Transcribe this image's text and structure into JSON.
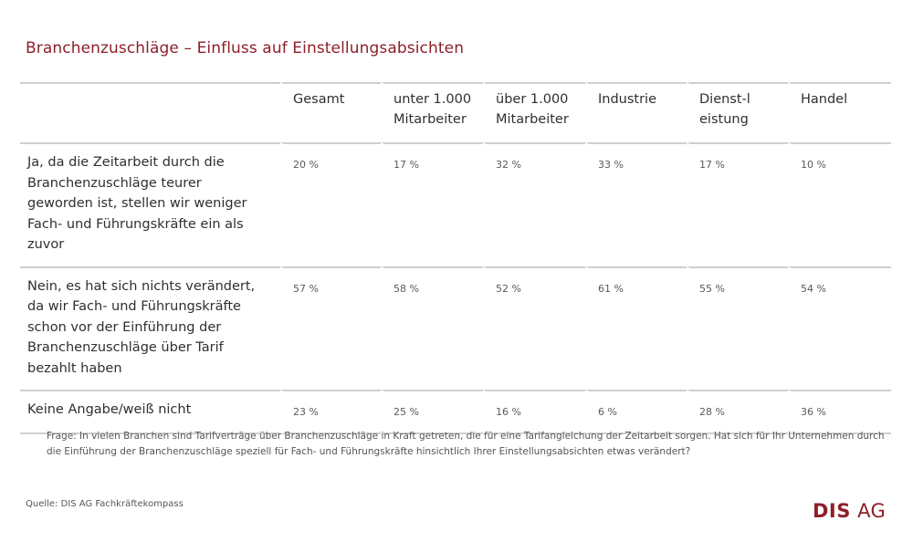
{
  "title": "Branchenzuschläge – Einfluss auf Einstellungsabsichten",
  "chart_data": {
    "type": "table",
    "title": "Branchenzuschläge – Einfluss auf Einstellungsabsichten",
    "columns": [
      "Gesamt",
      "unter 1.000 Mitarbeiter",
      "über 1.000 Mitarbeiter",
      "Industrie",
      "Dienst-leistung",
      "Handel"
    ],
    "rows": [
      {
        "label": "Ja, da die Zeitarbeit durch die Branchenzuschläge teurer geworden ist, stellen wir weniger Fach- und Führungskräfte ein als zuvor",
        "values": [
          "20 %",
          "17 %",
          "32 %",
          "33 %",
          "17 %",
          "10 %"
        ]
      },
      {
        "label": "Nein, es hat sich nichts verändert, da wir Fach- und Führungskräfte schon vor der Einführung der Branchenzuschläge über Tarif bezahlt haben",
        "values": [
          "57 %",
          "58 %",
          "52 %",
          "61 %",
          "55 %",
          "54 %"
        ]
      },
      {
        "label": "Keine Angabe/weiß nicht",
        "values": [
          "23 %",
          "25 %",
          "16 %",
          "6 %",
          "28 %",
          "36 %"
        ]
      }
    ]
  },
  "footnote": "Frage: In vielen Branchen sind Tarifverträge über Branchenzuschläge in Kraft getreten, die für eine Tarifangleichung der Zeitarbeit sorgen. Hat sich für Ihr Unternehmen durch die Einführung der Branchenzuschläge speziell für Fach- und Führungskräfte hinsichtlich Ihrer Einstellungsabsichten etwas verändert?",
  "source": "Quelle:  DIS AG Fachkräftekompass",
  "logo": {
    "part1": "DIS",
    "part2": "AG"
  }
}
